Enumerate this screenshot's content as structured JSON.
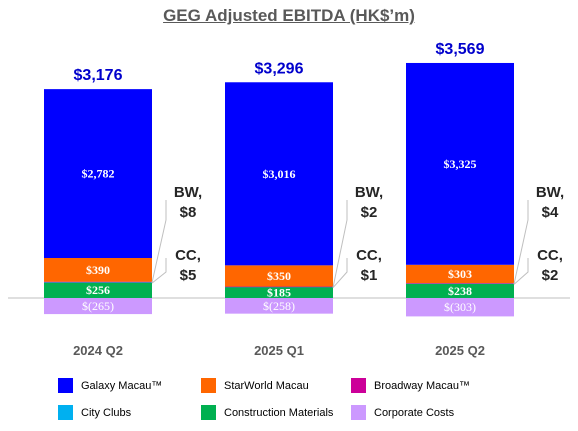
{
  "chart_data": {
    "type": "bar",
    "stacked": true,
    "title": "GEG Adjusted EBITDA (HK$’m)",
    "categories": [
      "2024 Q2",
      "2025 Q1",
      "2025 Q2"
    ],
    "totals": [
      "$3,176",
      "$3,296",
      "$3,569"
    ],
    "series": [
      {
        "name": "Galaxy Macau™",
        "color": "#0000ff",
        "values": [
          2782,
          3016,
          3325
        ],
        "labels": [
          "$2,782",
          "$3,016",
          "$3,325"
        ]
      },
      {
        "name": "StarWorld Macau",
        "color": "#ff6600",
        "values": [
          390,
          350,
          303
        ],
        "labels": [
          "$390",
          "$350",
          "$303"
        ]
      },
      {
        "name": "Broadway Macau™",
        "color": "#cc0099",
        "values": [
          8,
          2,
          4
        ],
        "labels": [
          "BW,\n$8",
          "BW,\n$2",
          "BW,\n$4"
        ]
      },
      {
        "name": "City Clubs",
        "color": "#00b0f0",
        "values": [
          5,
          1,
          2
        ],
        "labels": [
          "CC,\n$5",
          "CC,\n$1",
          "CC,\n$2"
        ]
      },
      {
        "name": "Construction Materials",
        "color": "#00b050",
        "values": [
          256,
          185,
          238
        ],
        "labels": [
          "$256",
          "$185",
          "$238"
        ]
      },
      {
        "name": "Corporate Costs",
        "color": "#cc99ff",
        "values": [
          -265,
          -258,
          -303
        ],
        "labels": [
          "$(265)",
          "$(258)",
          "$(303)"
        ]
      }
    ],
    "stack_order": [
      "Construction Materials",
      "City Clubs",
      "Broadway Macau™",
      "StarWorld Macau",
      "Galaxy Macau™"
    ],
    "legend": {
      "position": "bottom",
      "items": [
        "Galaxy Macau™",
        "StarWorld Macau",
        "Broadway Macau™",
        "City Clubs",
        "Construction Materials",
        "Corporate Costs"
      ]
    },
    "colors": {
      "total_label": "#0000cc",
      "axis": "#bfbfbf",
      "category_label": "#595959"
    }
  }
}
